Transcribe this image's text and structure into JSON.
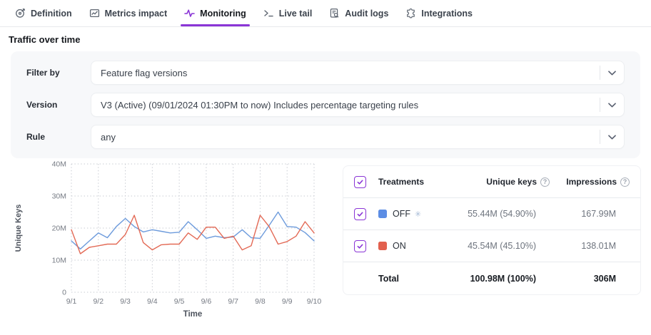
{
  "tabs": {
    "active": "Monitoring",
    "items": [
      {
        "label": "Definition",
        "icon": "target-icon"
      },
      {
        "label": "Metrics impact",
        "icon": "line-chart-icon"
      },
      {
        "label": "Monitoring",
        "icon": "pulse-icon"
      },
      {
        "label": "Live tail",
        "icon": "terminal-icon"
      },
      {
        "label": "Audit logs",
        "icon": "document-search-icon"
      },
      {
        "label": "Integrations",
        "icon": "puzzle-icon"
      }
    ]
  },
  "page": {
    "section_title": "Traffic over time"
  },
  "filters": {
    "filter_by": {
      "label": "Filter by",
      "value": "Feature flag versions"
    },
    "version": {
      "label": "Version",
      "value": "V3 (Active) (09/01/2024 01:30PM to now) Includes percentage targeting rules"
    },
    "rule": {
      "label": "Rule",
      "value": "any"
    }
  },
  "chart_data": {
    "type": "line",
    "xlabel": "Time",
    "ylabel": "Unique Keys",
    "x_tick_labels": [
      "9/1",
      "9/2",
      "9/3",
      "9/4",
      "9/5",
      "9/6",
      "9/7",
      "9/8",
      "9/9",
      "9/10"
    ],
    "y_tick_labels": [
      "0",
      "10M",
      "20M",
      "30M",
      "40M"
    ],
    "y_tick_values": [
      0,
      10,
      20,
      30,
      40
    ],
    "ylim": [
      0,
      40
    ],
    "unit": "M",
    "grid": "dotted",
    "points_per_day": 3,
    "series": [
      {
        "name": "OFF",
        "color": "#6D9BDC",
        "values": [
          16,
          13.5,
          16,
          18.5,
          17,
          20.5,
          23,
          20.5,
          18.8,
          19.5,
          19,
          18.5,
          18.7,
          22,
          19.5,
          16.8,
          17.5,
          17,
          17.2,
          19.5,
          17,
          16.8,
          20.8,
          25,
          20.5,
          20.3,
          18.6,
          16
        ]
      },
      {
        "name": "ON",
        "color": "#E36A56",
        "values": [
          19.5,
          12,
          14,
          14.5,
          15,
          15,
          18,
          24,
          15.5,
          13.2,
          14.8,
          15,
          15,
          18.5,
          16.5,
          20.3,
          20.3,
          16.8,
          17.5,
          13.2,
          14.5,
          24,
          20.5,
          15,
          15.8,
          17.5,
          22,
          18.5
        ]
      }
    ]
  },
  "table": {
    "header": {
      "treatments": "Treatments",
      "unique_keys": "Unique keys",
      "impressions": "Impressions",
      "help_glyph": "?"
    },
    "rows": [
      {
        "treatment": "OFF",
        "swatch": "#5C8DE4",
        "default_marker": "✳",
        "unique_keys": "55.44M (54.90%)",
        "impressions": "167.99M"
      },
      {
        "treatment": "ON",
        "swatch": "#E2604E",
        "default_marker": "",
        "unique_keys": "45.54M (45.10%)",
        "impressions": "138.01M"
      }
    ],
    "total": {
      "label": "Total",
      "unique_keys": "100.98M (100%)",
      "impressions": "306M"
    }
  },
  "colors": {
    "accent": "#8A35D6",
    "off_line": "#6D9BDC",
    "on_line": "#E36A56",
    "off_swatch": "#5C8DE4",
    "on_swatch": "#E2604E",
    "grid": "#c6cad1"
  }
}
